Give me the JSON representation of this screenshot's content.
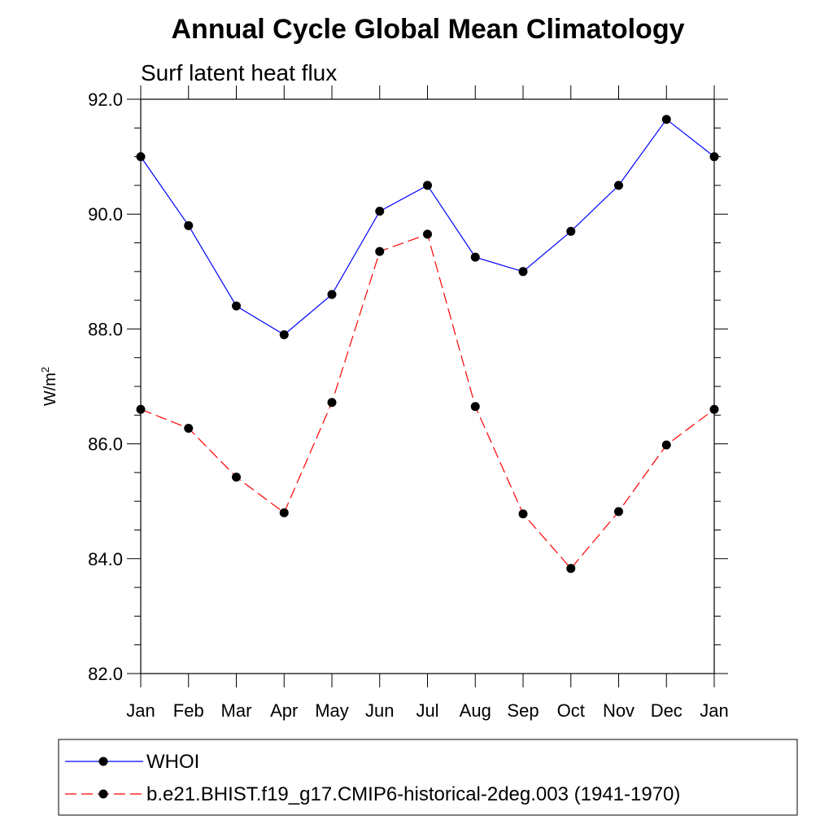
{
  "chart_data": {
    "type": "line",
    "title": "Annual Cycle Global Mean Climatology",
    "subtitle": "Surf latent heat flux",
    "xlabel": "",
    "ylabel": "W/m",
    "ylabel_superscript": "2",
    "categories": [
      "Jan",
      "Feb",
      "Mar",
      "Apr",
      "May",
      "Jun",
      "Jul",
      "Aug",
      "Sep",
      "Oct",
      "Nov",
      "Dec",
      "Jan"
    ],
    "ylim": [
      82.0,
      92.0
    ],
    "yticks": [
      "82.0",
      "84.0",
      "86.0",
      "88.0",
      "90.0",
      "92.0"
    ],
    "grid": false,
    "legend_position": "bottom",
    "series": [
      {
        "name": "WHOI",
        "color": "#0000ff",
        "line_style": "solid",
        "marker": "filled-circle",
        "values": [
          91.0,
          89.8,
          88.4,
          87.9,
          88.6,
          90.05,
          90.5,
          89.25,
          89.0,
          89.7,
          90.5,
          91.65,
          91.0
        ]
      },
      {
        "name": "b.e21.BHIST.f19_g17.CMIP6-historical-2deg.003 (1941-1970)",
        "color": "#ff0000",
        "line_style": "dashed",
        "marker": "filled-circle",
        "values": [
          86.6,
          86.27,
          85.42,
          84.8,
          86.72,
          89.35,
          89.65,
          86.65,
          84.78,
          83.83,
          84.82,
          85.98,
          86.6
        ]
      }
    ]
  }
}
